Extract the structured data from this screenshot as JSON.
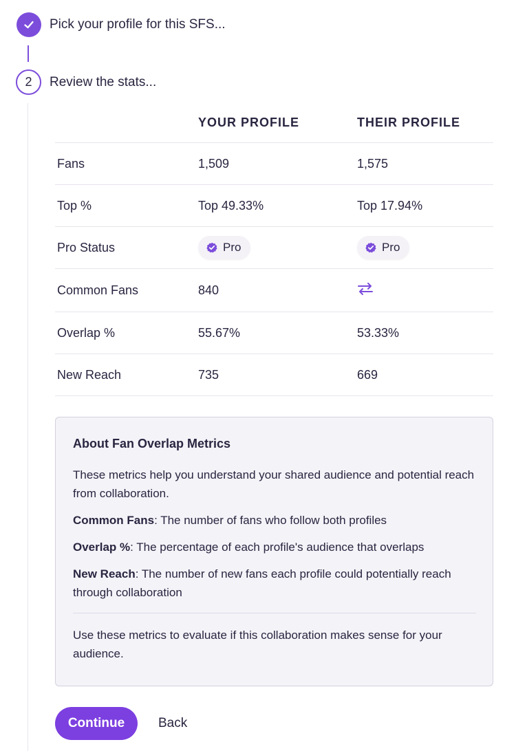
{
  "steps": [
    {
      "number": "1",
      "label": "Pick your profile for this SFS...",
      "state": "complete",
      "icon": "check-icon"
    },
    {
      "number": "2",
      "label": "Review the stats...",
      "state": "active"
    }
  ],
  "table": {
    "headers": [
      "",
      "YOUR PROFILE",
      "THEIR PROFILE"
    ],
    "rows": [
      {
        "label": "Fans",
        "yours": "1,509",
        "theirs": "1,575"
      },
      {
        "label": "Top %",
        "yours": "Top 49.33%",
        "theirs": "Top 17.94%"
      },
      {
        "label": "Pro Status",
        "yours": "Pro",
        "theirs": "Pro"
      },
      {
        "label": "Common Fans",
        "yours": "840",
        "theirs_icon": "swap-arrows-icon"
      },
      {
        "label": "Overlap %",
        "yours": "55.67%",
        "theirs": "53.33%"
      },
      {
        "label": "New Reach",
        "yours": "735",
        "theirs": "669"
      }
    ]
  },
  "info": {
    "title": "About Fan Overlap Metrics",
    "intro": "These metrics help you understand your shared audience and potential reach from collaboration.",
    "definitions": [
      {
        "term": "Common Fans",
        "text": ": The number of fans who follow both profiles"
      },
      {
        "term": "Overlap %",
        "text": ": The percentage of each profile's audience that overlaps"
      },
      {
        "term": "New Reach",
        "text": ": The number of new fans each profile could potentially reach through collaboration"
      }
    ],
    "outro": "Use these metrics to evaluate if this collaboration makes sense for your audience."
  },
  "actions": {
    "continue": "Continue",
    "back": "Back"
  },
  "colors": {
    "accent": "#7c4ddb",
    "button": "#7c3fe0",
    "info_bg": "#f4f3f8"
  }
}
